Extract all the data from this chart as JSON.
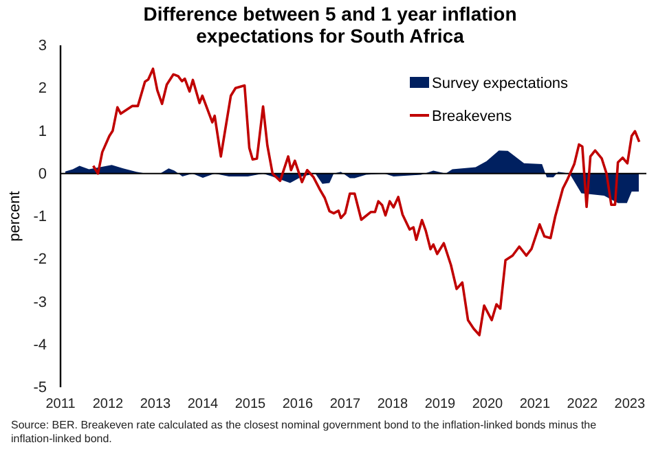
{
  "chart_data": {
    "type": "line",
    "title": "Difference between 5 and 1 year inflation expectations for South Africa",
    "ylabel": "percent",
    "xlim": [
      2011,
      2023.35
    ],
    "xticks": [
      2011,
      2012,
      2013,
      2014,
      2015,
      2016,
      2017,
      2018,
      2019,
      2020,
      2021,
      2022,
      2023
    ],
    "ylim": [
      -5,
      3
    ],
    "yticks": [
      -5,
      -4,
      -3,
      -2,
      -1,
      0,
      1,
      2,
      3
    ],
    "legend": "top right",
    "ref_lines": [
      {
        "axis": "y",
        "value": 0,
        "color": "#000000"
      }
    ],
    "annotations": [
      "Source: BER. Breakeven rate calculated as the closest nominal government bond to the inflation-linked bonds minus the inflation-linked bond."
    ],
    "series": [
      {
        "name": "Survey expectations",
        "type": "area",
        "color": "#002060",
        "x": [
          2011.1,
          2011.26,
          2011.4,
          2011.6,
          2012.08,
          2012.32,
          2012.6,
          2012.8,
          2013.1,
          2013.28,
          2013.4,
          2013.57,
          2013.78,
          2014.0,
          2014.25,
          2014.55,
          2014.95,
          2015.27,
          2015.46,
          2015.84,
          2016.09,
          2016.37,
          2016.52,
          2016.67,
          2016.76,
          2016.91,
          2017.1,
          2017.2,
          2017.44,
          2017.83,
          2018.02,
          2018.6,
          2018.86,
          2019.12,
          2019.26,
          2019.75,
          2019.98,
          2020.24,
          2020.43,
          2020.77,
          2021.15,
          2021.25,
          2021.39,
          2021.49,
          2021.73,
          2021.98,
          2022.46,
          2022.75,
          2022.94,
          2023.04,
          2023.19
        ],
        "values": [
          0.05,
          0.1,
          0.18,
          0.1,
          0.2,
          0.12,
          0.04,
          0,
          0,
          0.12,
          0.07,
          -0.07,
          0,
          -0.1,
          0,
          -0.07,
          -0.07,
          0,
          -0.07,
          -0.22,
          -0.07,
          0,
          -0.24,
          -0.22,
          0,
          0.04,
          -0.11,
          -0.11,
          -0.03,
          0,
          -0.07,
          -0.03,
          0.07,
          0,
          0.1,
          0.15,
          0.29,
          0.54,
          0.53,
          0.24,
          0.22,
          -0.09,
          -0.09,
          0.04,
          0,
          -0.46,
          -0.52,
          -0.69,
          -0.69,
          -0.42,
          -0.42
        ]
      },
      {
        "name": "Breakevens",
        "color": "#c00000",
        "x": [
          2011.69,
          2011.79,
          2011.88,
          2012.03,
          2012.1,
          2012.2,
          2012.27,
          2012.51,
          2012.63,
          2012.78,
          2012.85,
          2012.95,
          2013.04,
          2013.14,
          2013.24,
          2013.38,
          2013.48,
          2013.56,
          2013.62,
          2013.72,
          2013.79,
          2013.93,
          2013.99,
          2014.2,
          2014.25,
          2014.38,
          2014.59,
          2014.69,
          2014.88,
          2014.98,
          2015.05,
          2015.14,
          2015.27,
          2015.36,
          2015.47,
          2015.63,
          2015.8,
          2015.86,
          2015.94,
          2016.09,
          2016.2,
          2016.33,
          2016.47,
          2016.57,
          2016.67,
          2016.76,
          2016.86,
          2016.91,
          2017.0,
          2017.1,
          2017.2,
          2017.34,
          2017.54,
          2017.63,
          2017.7,
          2017.78,
          2017.85,
          2017.94,
          2018.02,
          2018.12,
          2018.21,
          2018.36,
          2018.44,
          2018.5,
          2018.62,
          2018.7,
          2018.8,
          2018.86,
          2018.94,
          2019.08,
          2019.23,
          2019.35,
          2019.47,
          2019.59,
          2019.71,
          2019.83,
          2019.93,
          2020.09,
          2020.19,
          2020.27,
          2020.38,
          2020.53,
          2020.67,
          2020.82,
          2020.93,
          2021.1,
          2021.2,
          2021.33,
          2021.43,
          2021.59,
          2021.69,
          2021.83,
          2021.93,
          2022.0,
          2022.09,
          2022.17,
          2022.27,
          2022.41,
          2022.51,
          2022.61,
          2022.69,
          2022.75,
          2022.85,
          2022.95,
          2023.04,
          2023.11,
          2023.2
        ],
        "values": [
          0.18,
          0,
          0.5,
          0.88,
          1.0,
          1.55,
          1.4,
          1.58,
          1.58,
          2.15,
          2.2,
          2.45,
          1.95,
          1.63,
          2.08,
          2.32,
          2.28,
          2.16,
          2.22,
          1.92,
          2.19,
          1.65,
          1.82,
          1.2,
          1.35,
          0.4,
          1.82,
          2.0,
          2.06,
          0.6,
          0.33,
          0.35,
          1.57,
          0.66,
          0,
          -0.17,
          0.4,
          0.08,
          0.3,
          -0.2,
          0.08,
          -0.08,
          -0.38,
          -0.57,
          -0.88,
          -0.93,
          -0.87,
          -1.04,
          -0.93,
          -0.47,
          -0.47,
          -1.08,
          -0.9,
          -0.9,
          -0.65,
          -0.74,
          -0.98,
          -0.65,
          -0.79,
          -0.55,
          -0.96,
          -1.31,
          -1.26,
          -1.55,
          -1.09,
          -1.34,
          -1.77,
          -1.66,
          -1.88,
          -1.63,
          -2.14,
          -2.7,
          -2.55,
          -3.43,
          -3.63,
          -3.78,
          -3.09,
          -3.43,
          -3.06,
          -3.16,
          -2.03,
          -1.92,
          -1.71,
          -1.92,
          -1.76,
          -1.19,
          -1.47,
          -1.51,
          -1.0,
          -0.35,
          -0.13,
          0.22,
          0.68,
          0.63,
          -0.78,
          0.4,
          0.54,
          0.35,
          0,
          -0.73,
          -0.73,
          0.26,
          0.37,
          0.24,
          0.88,
          0.99,
          0.74
        ]
      }
    ]
  }
}
